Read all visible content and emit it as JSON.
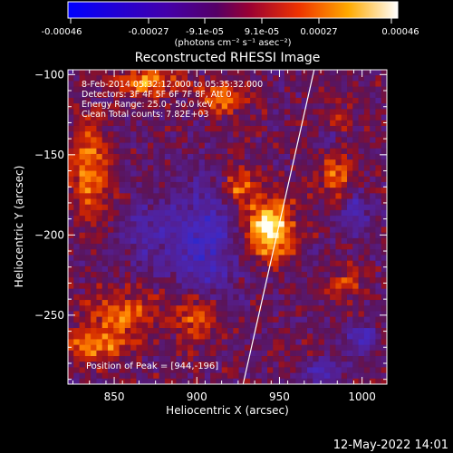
{
  "colorbar": {
    "ticks": [
      "-0.00046",
      "-0.00027",
      "-9.1e-05",
      "9.1e-05",
      "0.00027",
      "0.00046"
    ],
    "unit_label": "(photons cm⁻² s⁻¹ asec⁻²)"
  },
  "chart_data": {
    "type": "heatmap",
    "title": "Reconstructed RHESSI Image",
    "xlabel": "Heliocentric X (arcsec)",
    "ylabel": "Heliocentric Y (arcsec)",
    "xlim": [
      822,
      1015
    ],
    "ylim": [
      -293,
      -97
    ],
    "xticks": [
      850,
      900,
      950,
      1000
    ],
    "yticks": [
      -100,
      -150,
      -200,
      -250
    ],
    "xtick_labels": [
      "850",
      "900",
      "950",
      "1000"
    ],
    "ytick_labels": [
      "−100",
      "−150",
      "−200",
      "−250"
    ],
    "colorscale_range": [
      -0.00046,
      0.00046
    ],
    "colormap": "blue-purple-red-yellow-white",
    "info_lines": [
      "8-Feb-2014 05:32:12.000 to 05:35:32.000",
      "Detectors: 3F 4F 5F 6F 7F 8F, Att 0",
      "Energy Range: 25.0 - 50.0 keV",
      "Clean    Total counts: 7.82E+03"
    ],
    "peak_label": "Position of Peak = [944,-196]",
    "peak": [
      944,
      -196
    ],
    "limb_line": [
      [
        928,
        -293
      ],
      [
        971,
        -97
      ]
    ],
    "hotspots": [
      {
        "x": 944,
        "y": -196,
        "amp": 1.0,
        "sx": 14,
        "sy": 18
      },
      {
        "x": 925,
        "y": -170,
        "amp": 0.55,
        "sx": 10,
        "sy": 12
      },
      {
        "x": 870,
        "y": -105,
        "amp": 0.65,
        "sx": 18,
        "sy": 8
      },
      {
        "x": 835,
        "y": -160,
        "amp": 0.55,
        "sx": 12,
        "sy": 30
      },
      {
        "x": 985,
        "y": -165,
        "amp": 0.55,
        "sx": 10,
        "sy": 16
      },
      {
        "x": 915,
        "y": -115,
        "amp": 0.55,
        "sx": 14,
        "sy": 10
      },
      {
        "x": 855,
        "y": -250,
        "amp": 0.5,
        "sx": 22,
        "sy": 14
      },
      {
        "x": 900,
        "y": -250,
        "amp": 0.55,
        "sx": 14,
        "sy": 16
      },
      {
        "x": 840,
        "y": -270,
        "amp": 0.5,
        "sx": 20,
        "sy": 10
      },
      {
        "x": 990,
        "y": -230,
        "amp": 0.35,
        "sx": 10,
        "sy": 10
      },
      {
        "x": 985,
        "y": -130,
        "amp": 0.35,
        "sx": 8,
        "sy": 10
      }
    ],
    "lowspots": [
      {
        "x": 905,
        "y": -205,
        "amp": 0.55,
        "sx": 20,
        "sy": 40
      },
      {
        "x": 870,
        "y": -200,
        "amp": 0.35,
        "sx": 14,
        "sy": 20
      },
      {
        "x": 995,
        "y": -185,
        "amp": 0.5,
        "sx": 10,
        "sy": 14
      },
      {
        "x": 980,
        "y": -140,
        "amp": 0.4,
        "sx": 8,
        "sy": 8
      },
      {
        "x": 1000,
        "y": -265,
        "amp": 0.45,
        "sx": 10,
        "sy": 10
      },
      {
        "x": 975,
        "y": -285,
        "amp": 0.4,
        "sx": 12,
        "sy": 8
      }
    ]
  },
  "footer": {
    "timestamp": "12-May-2022 14:01"
  }
}
